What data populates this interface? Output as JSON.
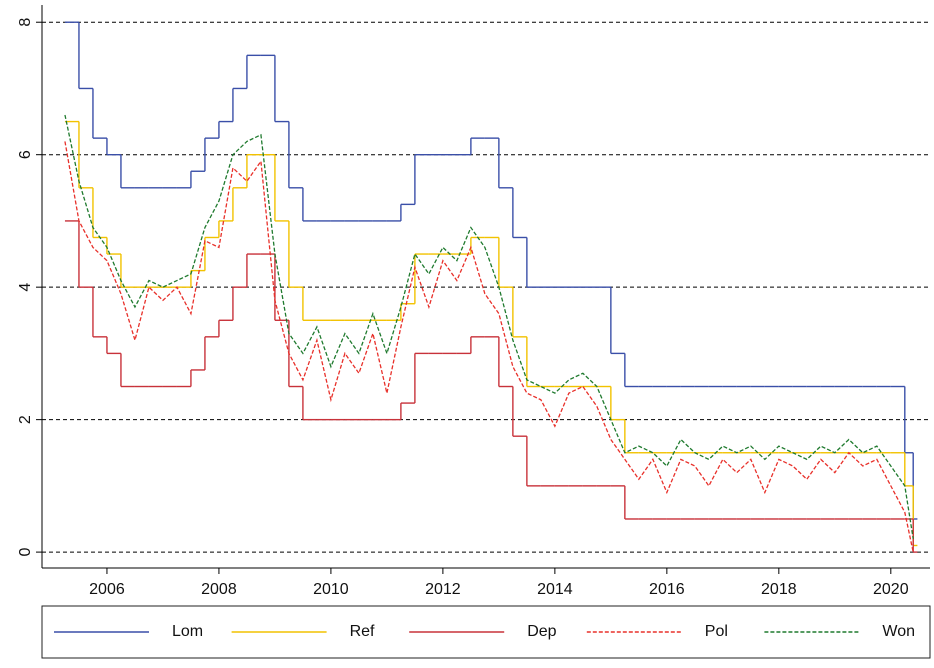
{
  "chart_data": {
    "type": "line",
    "x": [
      2005.25,
      2005.5,
      2005.75,
      2006,
      2006.25,
      2006.5,
      2006.75,
      2007,
      2007.25,
      2007.5,
      2007.75,
      2008,
      2008.25,
      2008.5,
      2008.75,
      2009,
      2009.25,
      2009.5,
      2009.75,
      2010,
      2010.25,
      2010.5,
      2010.75,
      2011,
      2011.25,
      2011.5,
      2011.75,
      2012,
      2012.25,
      2012.5,
      2012.75,
      2013,
      2013.25,
      2013.5,
      2013.75,
      2014,
      2014.25,
      2014.5,
      2014.75,
      2015,
      2015.25,
      2015.5,
      2015.75,
      2016,
      2016.25,
      2016.5,
      2016.75,
      2017,
      2017.25,
      2017.5,
      2017.75,
      2018,
      2018.25,
      2018.5,
      2018.75,
      2019,
      2019.25,
      2019.5,
      2019.75,
      2020,
      2020.25,
      2020.4
    ],
    "series": [
      {
        "name": "Lom",
        "color": "#3a4fa8",
        "step": true,
        "values": [
          8,
          7,
          6.25,
          6,
          5.5,
          5.5,
          5.5,
          5.5,
          5.5,
          5.75,
          6.25,
          6.5,
          7,
          7.5,
          7.5,
          6.5,
          5.5,
          5,
          5,
          5,
          5,
          5,
          5,
          5,
          5.25,
          6,
          6,
          6,
          6,
          6.25,
          6.25,
          5.5,
          4.75,
          4,
          4,
          4,
          4,
          4,
          4,
          3,
          2.5,
          2.5,
          2.5,
          2.5,
          2.5,
          2.5,
          2.5,
          2.5,
          2.5,
          2.5,
          2.5,
          2.5,
          2.5,
          2.5,
          2.5,
          2.5,
          2.5,
          2.5,
          2.5,
          2.5,
          1.5,
          0.5
        ]
      },
      {
        "name": "Ref",
        "color": "#f2c200",
        "step": true,
        "values": [
          6.5,
          5.5,
          4.75,
          4.5,
          4,
          4,
          4,
          4,
          4,
          4.25,
          4.75,
          5,
          5.5,
          6,
          6,
          5,
          4,
          3.5,
          3.5,
          3.5,
          3.5,
          3.5,
          3.5,
          3.5,
          3.75,
          4.5,
          4.5,
          4.5,
          4.5,
          4.75,
          4.75,
          4,
          3.25,
          2.5,
          2.5,
          2.5,
          2.5,
          2.5,
          2.5,
          2,
          1.5,
          1.5,
          1.5,
          1.5,
          1.5,
          1.5,
          1.5,
          1.5,
          1.5,
          1.5,
          1.5,
          1.5,
          1.5,
          1.5,
          1.5,
          1.5,
          1.5,
          1.5,
          1.5,
          1.5,
          1,
          0.1
        ]
      },
      {
        "name": "Dep",
        "color": "#c8323a",
        "step": true,
        "values": [
          5,
          4,
          3.25,
          3,
          2.5,
          2.5,
          2.5,
          2.5,
          2.5,
          2.75,
          3.25,
          3.5,
          4,
          4.5,
          4.5,
          3.5,
          2.5,
          2,
          2,
          2,
          2,
          2,
          2,
          2,
          2.25,
          3,
          3,
          3,
          3,
          3.25,
          3.25,
          2.5,
          1.75,
          1,
          1,
          1,
          1,
          1,
          1,
          1,
          0.5,
          0.5,
          0.5,
          0.5,
          0.5,
          0.5,
          0.5,
          0.5,
          0.5,
          0.5,
          0.5,
          0.5,
          0.5,
          0.5,
          0.5,
          0.5,
          0.5,
          0.5,
          0.5,
          0.5,
          0.5,
          0
        ]
      },
      {
        "name": "Pol",
        "color": "#e8302a",
        "dash": true,
        "values": [
          6.2,
          5.0,
          4.6,
          4.4,
          3.9,
          3.2,
          4.0,
          3.8,
          4.0,
          3.6,
          4.7,
          4.6,
          5.8,
          5.6,
          5.9,
          3.8,
          3.0,
          2.6,
          3.2,
          2.3,
          3.0,
          2.7,
          3.3,
          2.4,
          3.4,
          4.3,
          3.7,
          4.4,
          4.1,
          4.6,
          3.9,
          3.6,
          2.8,
          2.4,
          2.3,
          1.9,
          2.4,
          2.5,
          2.2,
          1.7,
          1.4,
          1.1,
          1.4,
          0.9,
          1.4,
          1.3,
          1.0,
          1.4,
          1.2,
          1.4,
          0.9,
          1.4,
          1.3,
          1.1,
          1.4,
          1.2,
          1.5,
          1.3,
          1.4,
          1.0,
          0.6,
          0.0
        ]
      },
      {
        "name": "Won",
        "color": "#1f7a2e",
        "dash": true,
        "values": [
          6.6,
          5.6,
          4.9,
          4.6,
          4.1,
          3.7,
          4.1,
          4.0,
          4.1,
          4.2,
          4.9,
          5.3,
          6.0,
          6.2,
          6.3,
          4.5,
          3.3,
          3.0,
          3.4,
          2.8,
          3.3,
          3.0,
          3.6,
          3.0,
          3.7,
          4.5,
          4.2,
          4.6,
          4.4,
          4.9,
          4.6,
          4.0,
          3.2,
          2.6,
          2.5,
          2.4,
          2.6,
          2.7,
          2.5,
          2.0,
          1.5,
          1.6,
          1.5,
          1.3,
          1.7,
          1.5,
          1.4,
          1.6,
          1.5,
          1.6,
          1.4,
          1.6,
          1.5,
          1.4,
          1.6,
          1.5,
          1.7,
          1.5,
          1.6,
          1.3,
          1.0,
          0.2
        ]
      }
    ],
    "xlim": [
      2004.84,
      2020.7
    ],
    "ylim": [
      -0.24,
      8.26
    ],
    "xticks": [
      2006,
      2008,
      2010,
      2012,
      2014,
      2016,
      2018,
      2020
    ],
    "yticks": [
      0,
      2,
      4,
      6,
      8
    ],
    "grid": true
  }
}
